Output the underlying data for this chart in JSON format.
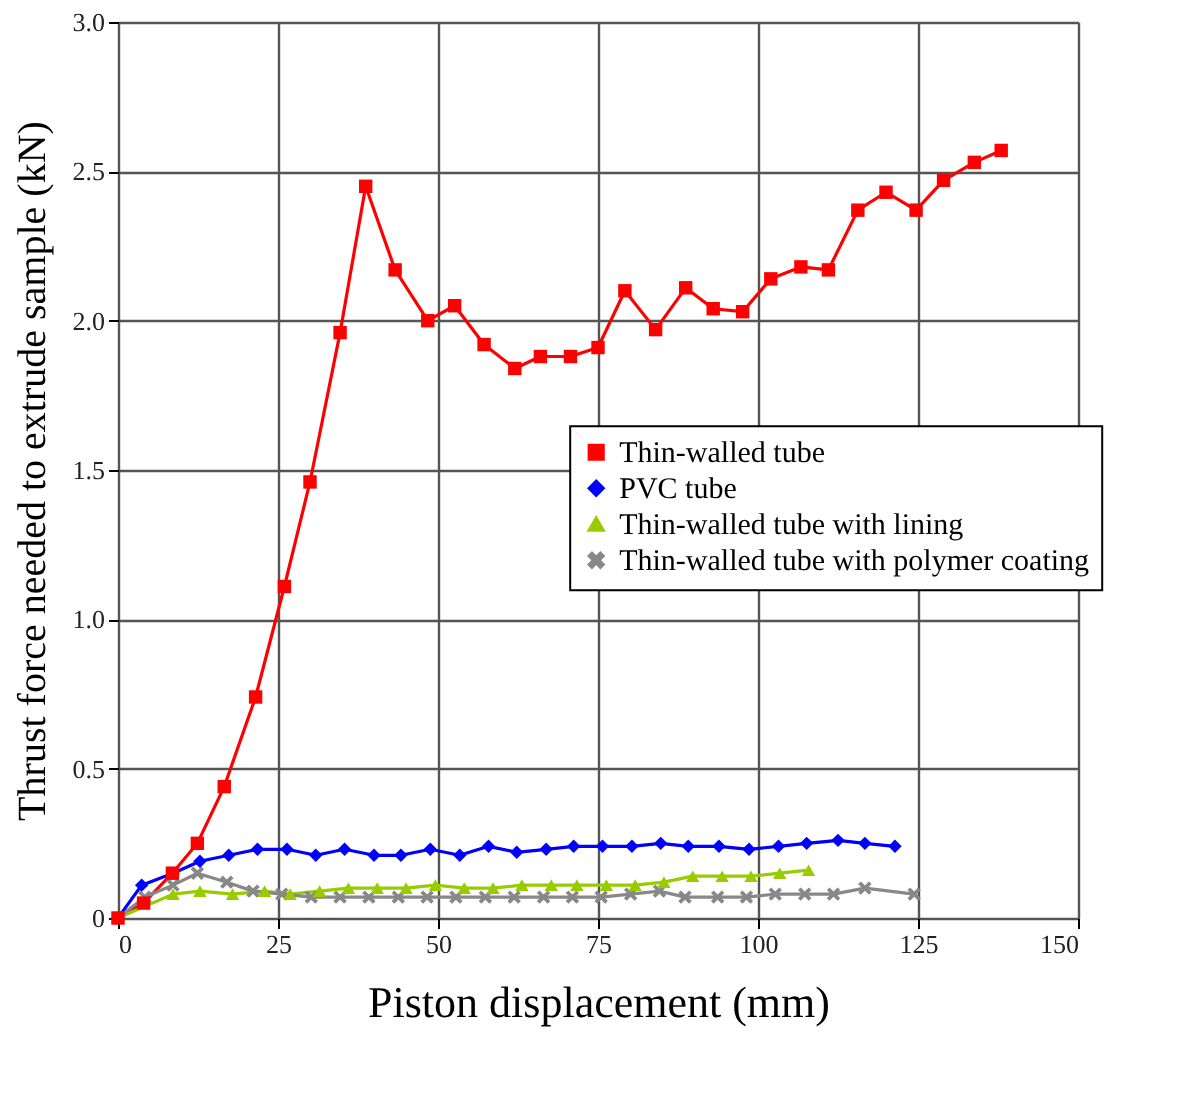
{
  "chart_data": {
    "type": "line",
    "xlabel": "Piston displacement (mm)",
    "ylabel": "Thrust force needed to extrude sample (kN)",
    "xlim": [
      0,
      150
    ],
    "xticks": [
      0,
      25,
      50,
      75,
      100,
      125,
      150
    ],
    "ylim": [
      0,
      3.0
    ],
    "yticks": [
      0,
      0.5,
      {
        "value": 1.0,
        "label": "1.0"
      },
      1.5,
      {
        "value": 2.0,
        "label": "2.0"
      },
      2.5,
      {
        "value": 3.0,
        "label": "3.0"
      }
    ],
    "grid": true,
    "legend": "right",
    "line_style": "solid",
    "series": [
      {
        "name": "Thin-walled tube",
        "color": "#ff0000",
        "marker": "square",
        "x": [
          0,
          4,
          8.5,
          12.4,
          16.6,
          21.5,
          26,
          30,
          34.7,
          38.7,
          43.3,
          48.4,
          52.6,
          57.2,
          62,
          66,
          70.7,
          75,
          79.2,
          84,
          88.7,
          93,
          97.6,
          102,
          106.7,
          111,
          115.6,
          120,
          124.7,
          129,
          133.8,
          138
        ],
        "values": [
          0,
          0.05,
          0.15,
          0.25,
          0.44,
          0.74,
          1.11,
          1.46,
          1.96,
          2.45,
          2.17,
          2.0,
          2.05,
          1.92,
          1.84,
          1.88,
          1.88,
          1.91,
          2.1,
          1.97,
          2.11,
          2.04,
          2.03,
          2.14,
          2.18,
          2.17,
          2.37,
          2.43,
          2.37,
          2.47,
          2.53,
          2.57
        ]
      },
      {
        "name": "PVC tube",
        "color": "#0000ff",
        "marker": "diamond",
        "x": [
          0,
          3.7,
          8.6,
          12.8,
          17.3,
          21.8,
          26.4,
          30.9,
          35.4,
          40.0,
          44.2,
          48.8,
          53.4,
          57.9,
          62.3,
          66.9,
          71.2,
          75.7,
          80.3,
          84.8,
          89.1,
          93.9,
          98.6,
          103.2,
          107.6,
          112.5,
          116.7,
          121.4
        ],
        "values": [
          0,
          0.11,
          0.15,
          0.19,
          0.21,
          0.23,
          0.23,
          0.21,
          0.23,
          0.21,
          0.21,
          0.23,
          0.21,
          0.24,
          0.22,
          0.23,
          0.24,
          0.24,
          0.24,
          0.25,
          0.24,
          0.24,
          0.23,
          0.24,
          0.25,
          0.26,
          0.25,
          0.24
        ]
      },
      {
        "name": "Thin-walled tube with lining",
        "color": "#99cc00",
        "marker": "triangle",
        "x": [
          0,
          8.6,
          12.8,
          17.9,
          22.9,
          26.9,
          31.5,
          36.0,
          40.5,
          45.0,
          49.6,
          54.1,
          58.6,
          63.1,
          67.7,
          71.7,
          76.3,
          80.8,
          85.3,
          89.8,
          94.4,
          98.9,
          103.4,
          107.9
        ],
        "values": [
          0,
          0.08,
          0.09,
          0.08,
          0.09,
          0.08,
          0.09,
          0.1,
          0.1,
          0.1,
          0.11,
          0.1,
          0.1,
          0.11,
          0.11,
          0.11,
          0.11,
          0.11,
          0.12,
          0.14,
          0.14,
          0.14,
          0.15,
          0.16
        ]
      },
      {
        "name": "Thin-walled tube with polymer coating",
        "color": "#888888",
        "marker": "cross",
        "x": [
          0,
          4.2,
          8.6,
          12.4,
          17.0,
          21.1,
          25.6,
          30.2,
          34.7,
          39.2,
          43.8,
          48.3,
          52.8,
          57.4,
          61.9,
          66.5,
          71.0,
          75.5,
          80.1,
          84.6,
          88.6,
          93.7,
          98.2,
          102.7,
          107.3,
          111.8,
          116.7,
          124.4
        ],
        "values": [
          0,
          0.07,
          0.11,
          0.15,
          0.12,
          0.09,
          0.08,
          0.07,
          0.07,
          0.07,
          0.07,
          0.07,
          0.07,
          0.07,
          0.07,
          0.07,
          0.07,
          0.07,
          0.08,
          0.09,
          0.07,
          0.07,
          0.07,
          0.08,
          0.08,
          0.08,
          0.1,
          0.08
        ]
      }
    ]
  }
}
